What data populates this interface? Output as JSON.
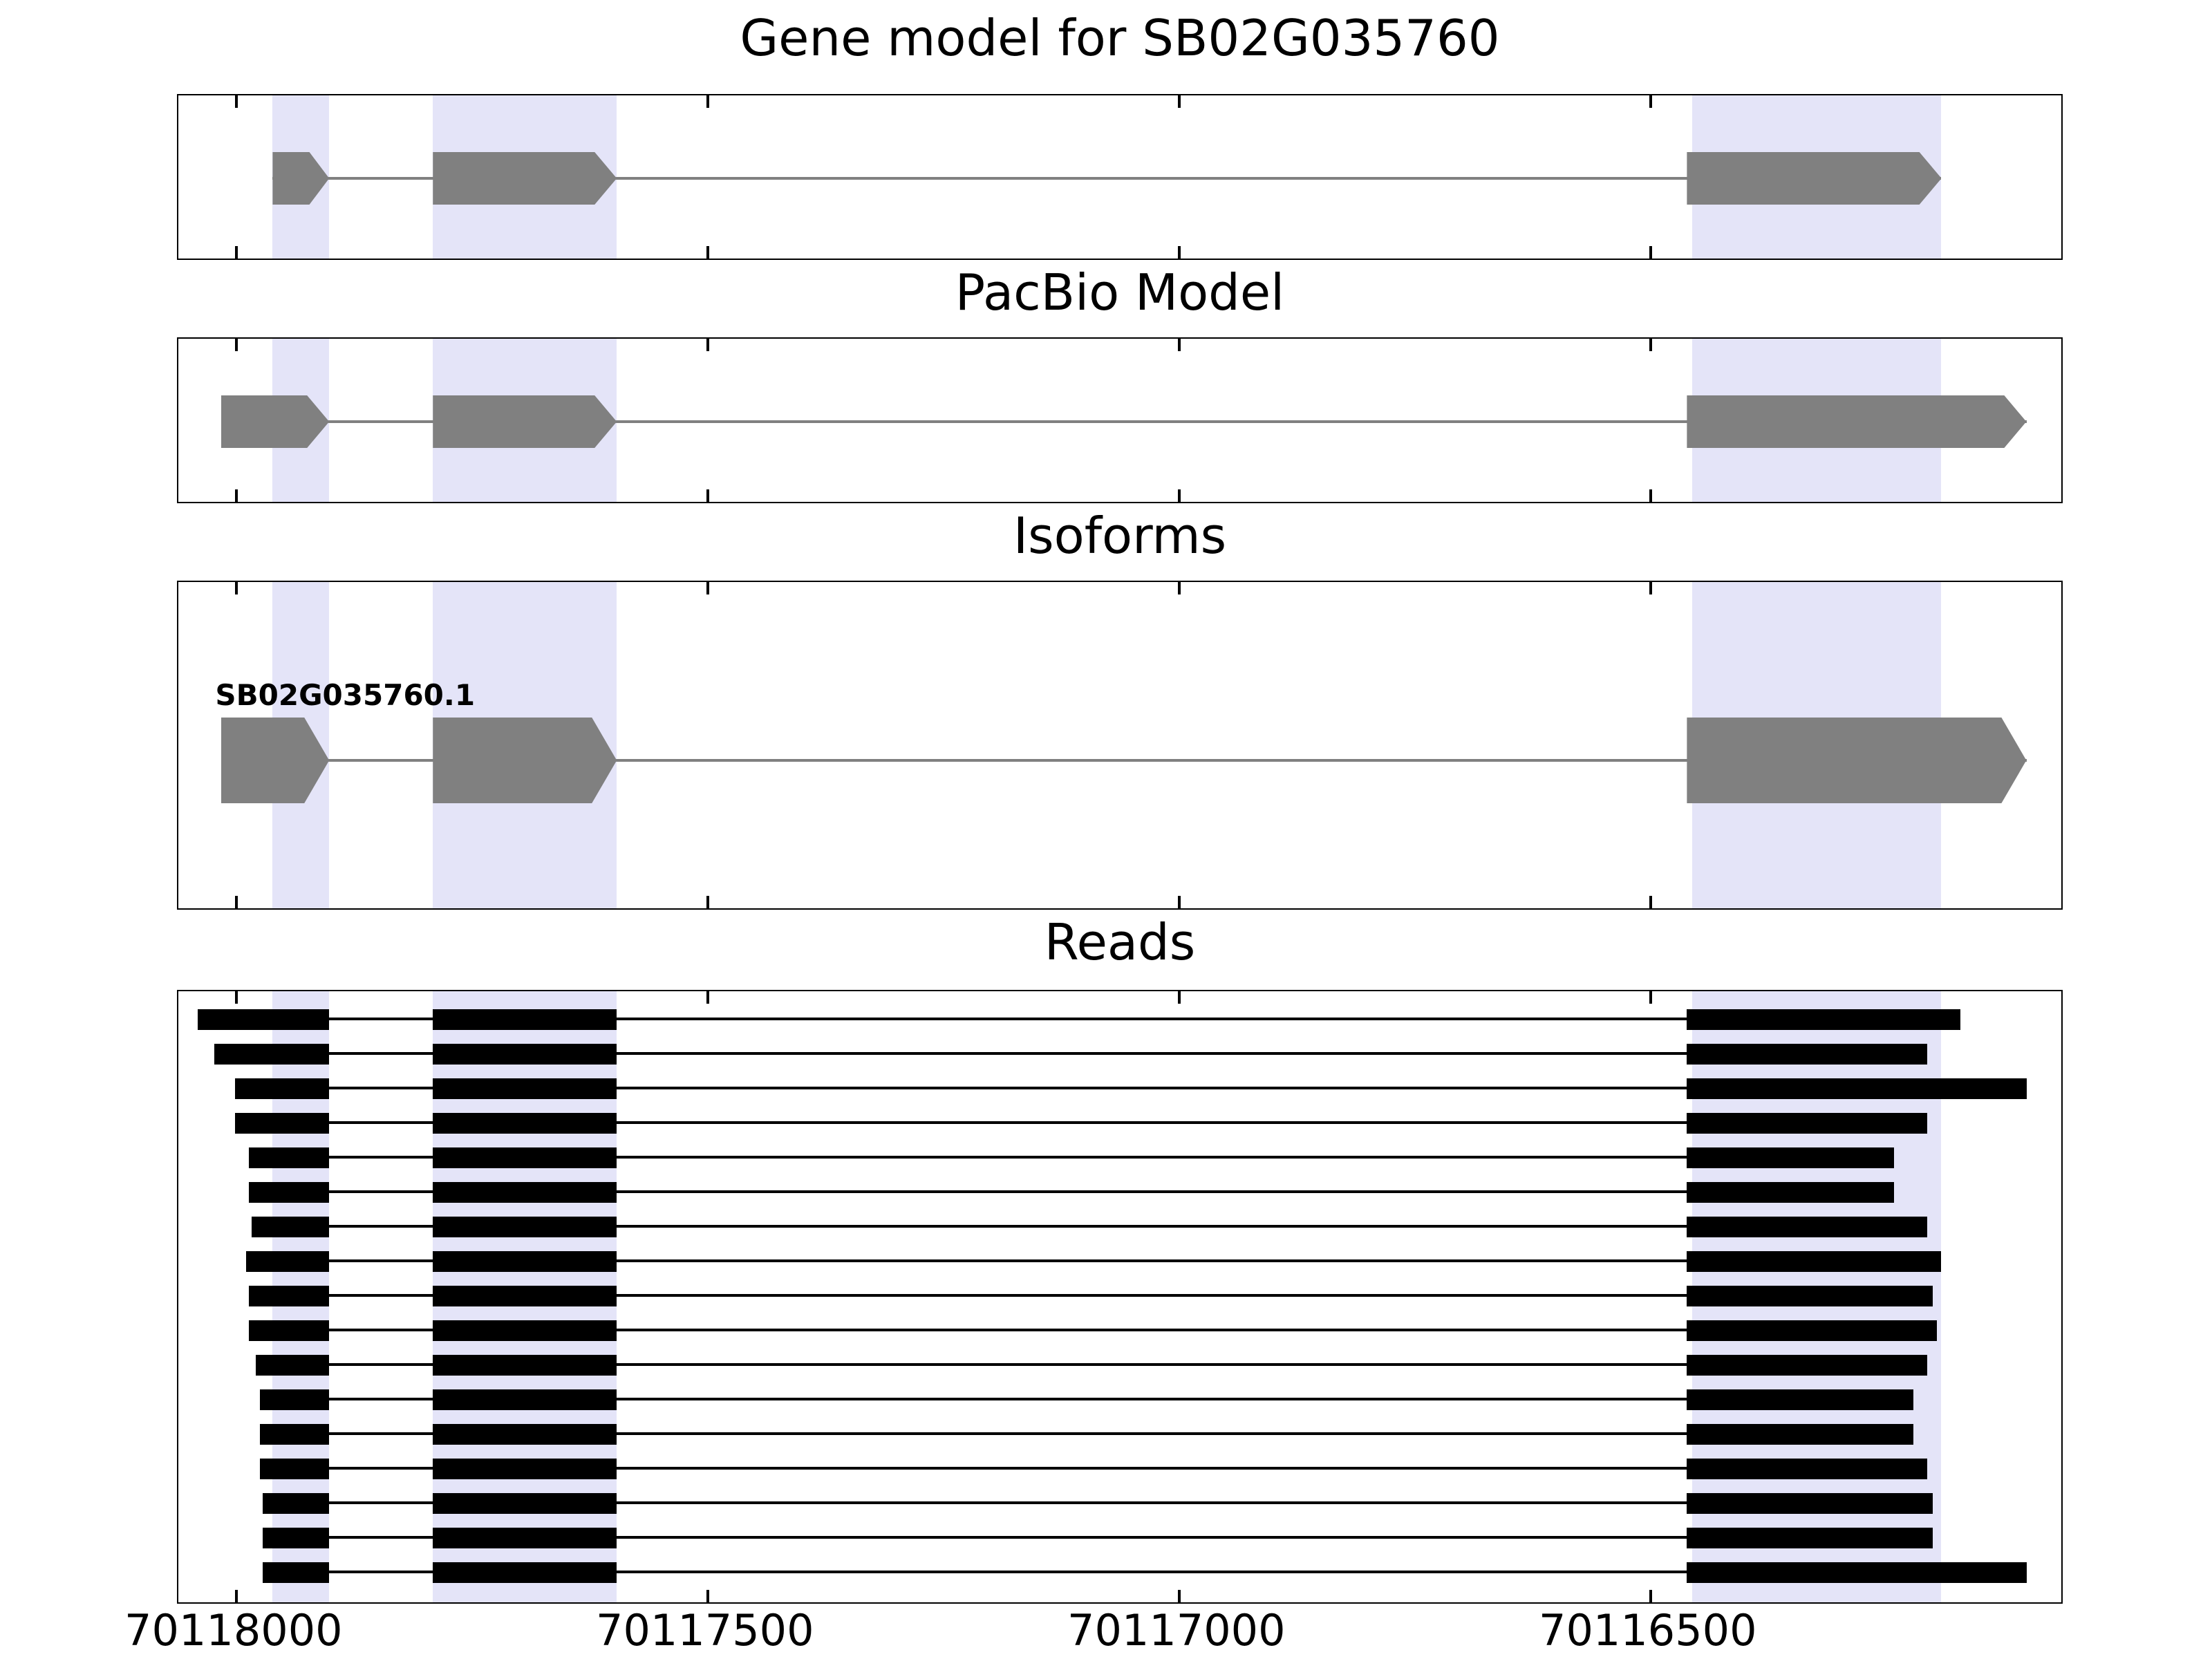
{
  "chart_data": {
    "type": "genome_browser_tracks",
    "title": "Gene model for SB02G035760",
    "axis": {
      "left_value": 70118060,
      "right_value": 70116060,
      "orientation": "decreasing",
      "tick_values": [
        70118000,
        70117500,
        70117000,
        70116500
      ],
      "tick_labels": [
        "70118000",
        "70117500",
        "70117000",
        "70116500"
      ]
    },
    "colors": {
      "exon": "#808080",
      "intron_line": "#808080",
      "read": "#000000",
      "highlight_band": "#e4e4f8",
      "background": "#ffffff"
    },
    "highlight_regions": [
      {
        "start": 70117960,
        "end": 70117900
      },
      {
        "start": 70117790,
        "end": 70117595
      },
      {
        "start": 70116455,
        "end": 70116190
      }
    ],
    "panels": [
      {
        "title": "Gene model for SB02G035760",
        "kind": "model",
        "models": [
          {
            "label": "",
            "strand": "forward",
            "exons": [
              {
                "start": 70117960,
                "end": 70117900
              },
              {
                "start": 70117790,
                "end": 70117595
              },
              {
                "start": 70116460,
                "end": 70116190
              }
            ]
          }
        ]
      },
      {
        "title": "PacBio Model",
        "kind": "model",
        "models": [
          {
            "label": "",
            "strand": "forward",
            "exons": [
              {
                "start": 70118015,
                "end": 70117900
              },
              {
                "start": 70117790,
                "end": 70117595
              },
              {
                "start": 70116460,
                "end": 70116100
              }
            ]
          }
        ]
      },
      {
        "title": "Isoforms",
        "kind": "model",
        "models": [
          {
            "label": "SB02G035760.1",
            "strand": "forward",
            "exons": [
              {
                "start": 70118015,
                "end": 70117900
              },
              {
                "start": 70117790,
                "end": 70117595
              },
              {
                "start": 70116460,
                "end": 70116100
              }
            ]
          }
        ]
      },
      {
        "title": "Reads",
        "kind": "reads",
        "junctions": {
          "exon1_end": 70117900,
          "exon2_start": 70117790,
          "exon2_end": 70117595,
          "exon3_start": 70116460
        },
        "reads": [
          {
            "start": 70118040,
            "end": 70116170
          },
          {
            "start": 70118022,
            "end": 70116205
          },
          {
            "start": 70118000,
            "end": 70116100
          },
          {
            "start": 70118000,
            "end": 70116205
          },
          {
            "start": 70117985,
            "end": 70116240
          },
          {
            "start": 70117985,
            "end": 70116240
          },
          {
            "start": 70117982,
            "end": 70116205
          },
          {
            "start": 70117988,
            "end": 70116190
          },
          {
            "start": 70117985,
            "end": 70116200
          },
          {
            "start": 70117985,
            "end": 70116195
          },
          {
            "start": 70117978,
            "end": 70116205
          },
          {
            "start": 70117973,
            "end": 70116220
          },
          {
            "start": 70117973,
            "end": 70116220
          },
          {
            "start": 70117973,
            "end": 70116205
          },
          {
            "start": 70117970,
            "end": 70116200
          },
          {
            "start": 70117970,
            "end": 70116200
          },
          {
            "start": 70117970,
            "end": 70116100
          }
        ]
      }
    ]
  }
}
